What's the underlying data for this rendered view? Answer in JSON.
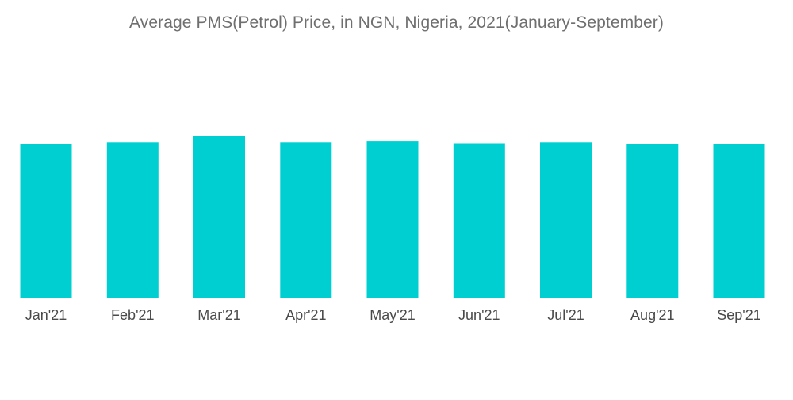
{
  "chart_data": {
    "type": "bar",
    "title": "Average PMS(Petrol) Price, in NGN, Nigeria, 2021(January-September)",
    "xlabel": "",
    "ylabel": "",
    "categories": [
      "Jan'21",
      "Feb'21",
      "Mar'21",
      "Apr'21",
      "May'21",
      "Jun'21",
      "Jul'21",
      "Aug'21",
      "Sep'21"
    ],
    "values": [
      164,
      166,
      173,
      166,
      167,
      165,
      166,
      164.5,
      164.5
    ],
    "ylim": [
      0,
      173
    ],
    "grid": false,
    "legend": "none",
    "bar_color": "#00cfd1"
  }
}
